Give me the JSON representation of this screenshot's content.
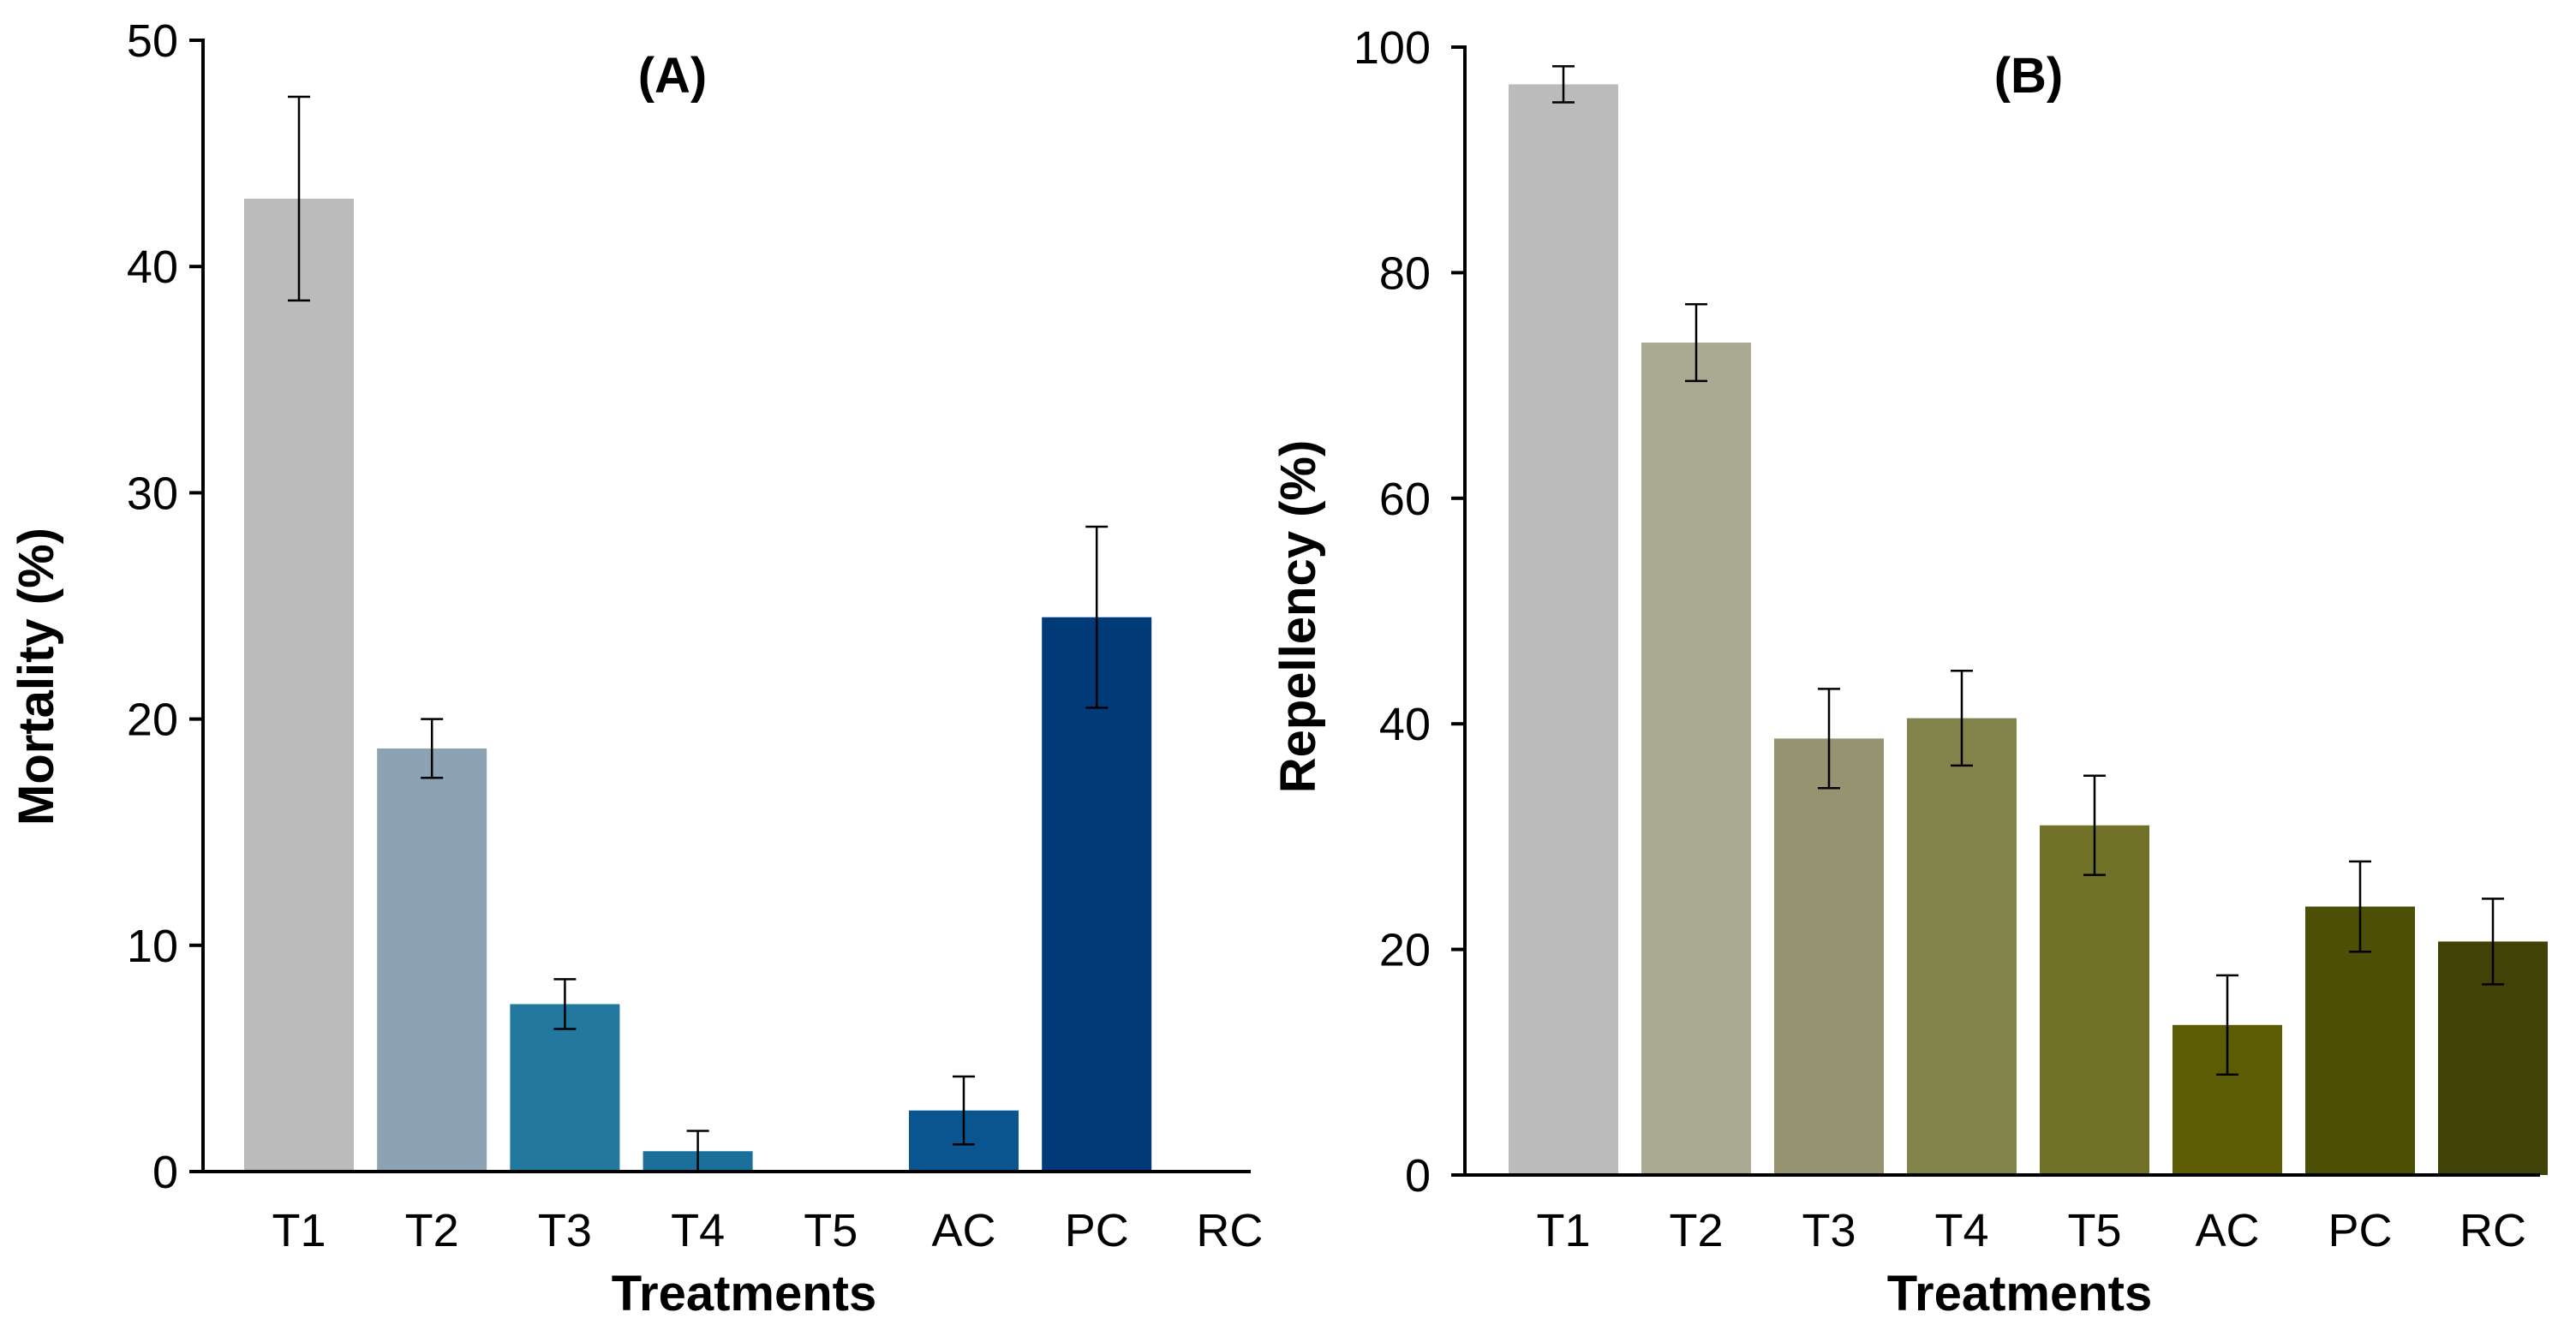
{
  "chart_data": [
    {
      "type": "bar",
      "title": "(A)",
      "xlabel": "Treatments",
      "ylabel": "Mortality (%)",
      "ylim": [
        0,
        50
      ],
      "yticks": [
        0,
        10,
        20,
        30,
        40,
        50
      ],
      "categories": [
        "T1",
        "T2",
        "T3",
        "T4",
        "T5",
        "AC",
        "PC",
        "RC"
      ],
      "values": [
        43.0,
        18.7,
        7.4,
        0.9,
        0,
        2.7,
        24.5,
        0
      ],
      "errors": [
        4.5,
        1.3,
        1.1,
        0.9,
        0,
        1.5,
        4.0,
        0
      ],
      "colors": [
        "#bbbbbb",
        "#8ba3b2",
        "#22789f",
        "#1a6f9b",
        "#16649b",
        "#0a5590",
        "#003a78",
        "#003470"
      ]
    },
    {
      "type": "bar",
      "title": "(B)",
      "xlabel": "Treatments",
      "ylabel": "Repellency (%)",
      "ylim": [
        0,
        100
      ],
      "yticks": [
        0,
        20,
        40,
        60,
        80,
        100
      ],
      "categories": [
        "T1",
        "T2",
        "T3",
        "T4",
        "T5",
        "AC",
        "PC",
        "RC"
      ],
      "values": [
        96.7,
        73.8,
        38.7,
        40.5,
        31.0,
        13.3,
        23.8,
        20.7
      ],
      "errors": [
        1.6,
        3.4,
        4.4,
        4.2,
        4.4,
        4.4,
        4.0,
        3.8
      ],
      "colors": [
        "#bbbbbb",
        "#aaaa92",
        "#969470",
        "#82834a",
        "#717228",
        "#5b5c04",
        "#4d4f06",
        "#404208"
      ]
    }
  ]
}
